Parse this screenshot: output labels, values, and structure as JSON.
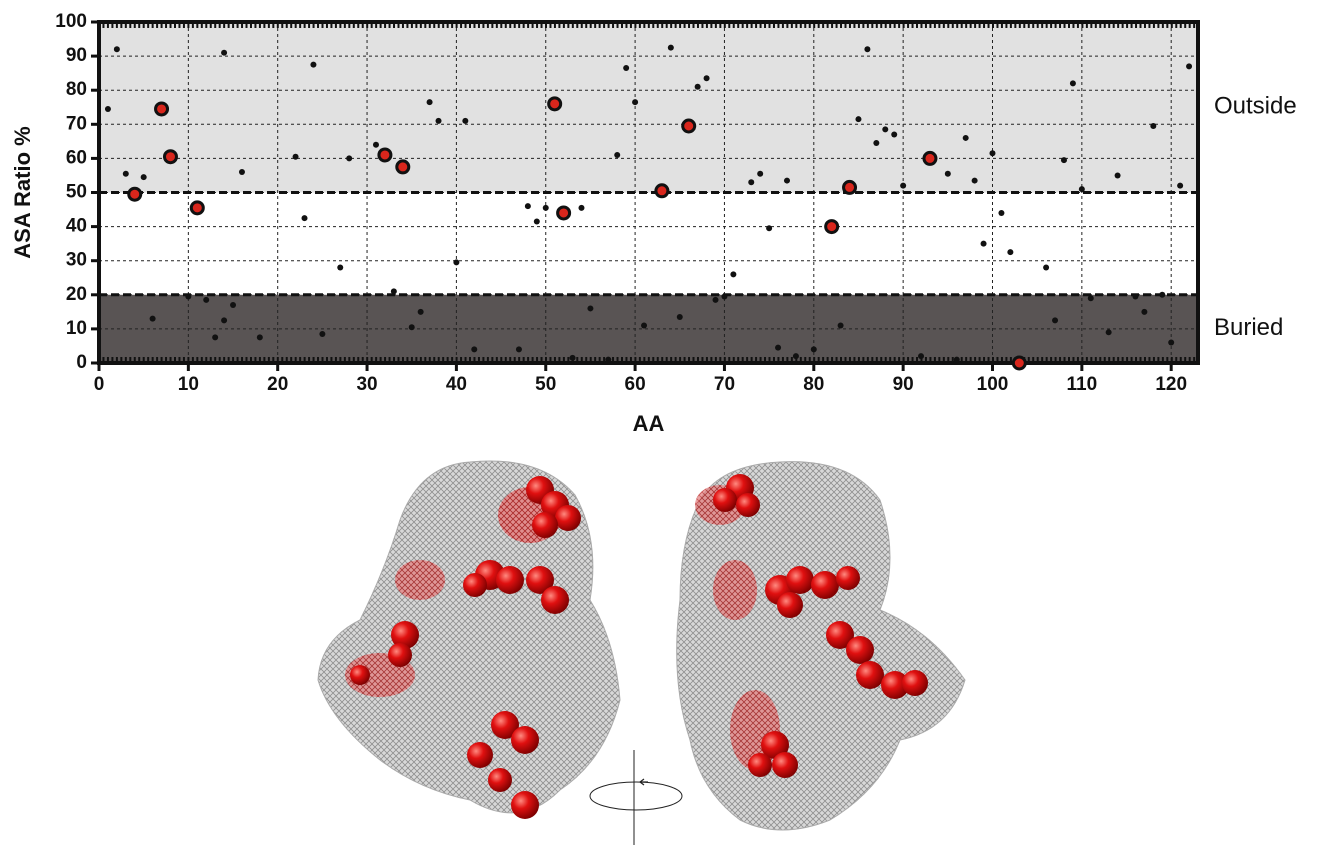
{
  "chart_data": {
    "type": "scatter",
    "x_label": "AA",
    "y_label": "ASA Ratio %",
    "xlim": [
      0,
      123
    ],
    "ylim": [
      0,
      100
    ],
    "xticks": [
      0,
      10,
      20,
      30,
      40,
      50,
      60,
      70,
      80,
      90,
      100,
      110,
      120
    ],
    "yticks": [
      0,
      10,
      20,
      30,
      40,
      50,
      60,
      70,
      80,
      90,
      100
    ],
    "grid": true,
    "regions": [
      {
        "label": "Outside",
        "from": 50,
        "to": 100,
        "color": "#e1e1e1"
      },
      {
        "label": "Buried",
        "from": 0,
        "to": 20,
        "color": "#595454"
      }
    ],
    "series": [
      {
        "color": "#111111",
        "x": [
          1,
          2,
          3,
          5,
          6,
          10,
          12,
          13,
          14,
          14,
          15,
          16,
          18,
          22,
          23,
          24,
          25,
          27,
          28,
          31,
          33,
          35,
          36,
          37,
          38,
          40,
          41,
          42,
          47,
          48,
          49,
          50,
          53,
          54,
          55,
          57,
          58,
          59,
          60,
          61,
          64,
          65,
          67,
          68,
          69,
          70,
          71,
          73,
          74,
          75,
          76,
          77,
          78,
          80,
          83,
          85,
          86,
          87,
          88,
          89,
          90,
          92,
          95,
          96,
          97,
          98,
          99,
          100,
          101,
          102,
          106,
          107,
          108,
          109,
          110,
          111,
          113,
          114,
          116,
          117,
          118,
          119,
          120,
          121,
          122
        ],
        "values": [
          74.5,
          92,
          55.5,
          54.5,
          13,
          19.5,
          18.5,
          7.5,
          91,
          12.5,
          17,
          56,
          7.5,
          60.5,
          42.5,
          87.5,
          8.5,
          28,
          60,
          64,
          21,
          10.5,
          15,
          76.5,
          71,
          29.5,
          71,
          4,
          4,
          46,
          41.5,
          45.5,
          1.5,
          45.5,
          16,
          1,
          61,
          86.5,
          76.5,
          11,
          92.5,
          13.5,
          81,
          83.5,
          18.5,
          19.5,
          26,
          53,
          55.5,
          39.5,
          4.5,
          53.5,
          2,
          4,
          11,
          71.5,
          92,
          64.5,
          68.5,
          67,
          52,
          2,
          55.5,
          1,
          66,
          53.5,
          35,
          61.5,
          44,
          32.5,
          28,
          12.5,
          59.5,
          82,
          51,
          19,
          9,
          55,
          19.5,
          15,
          69.5,
          20,
          6,
          52,
          87
        ]
      },
      {
        "color": "#d9261c",
        "x": [
          4,
          7,
          8,
          11,
          32,
          34,
          51,
          52,
          63,
          66,
          82,
          84,
          93,
          103
        ],
        "values": [
          49.5,
          74.5,
          60.5,
          45.5,
          61,
          57.5,
          76,
          44,
          50.5,
          69.5,
          40,
          51.5,
          60,
          0
        ]
      }
    ]
  }
}
